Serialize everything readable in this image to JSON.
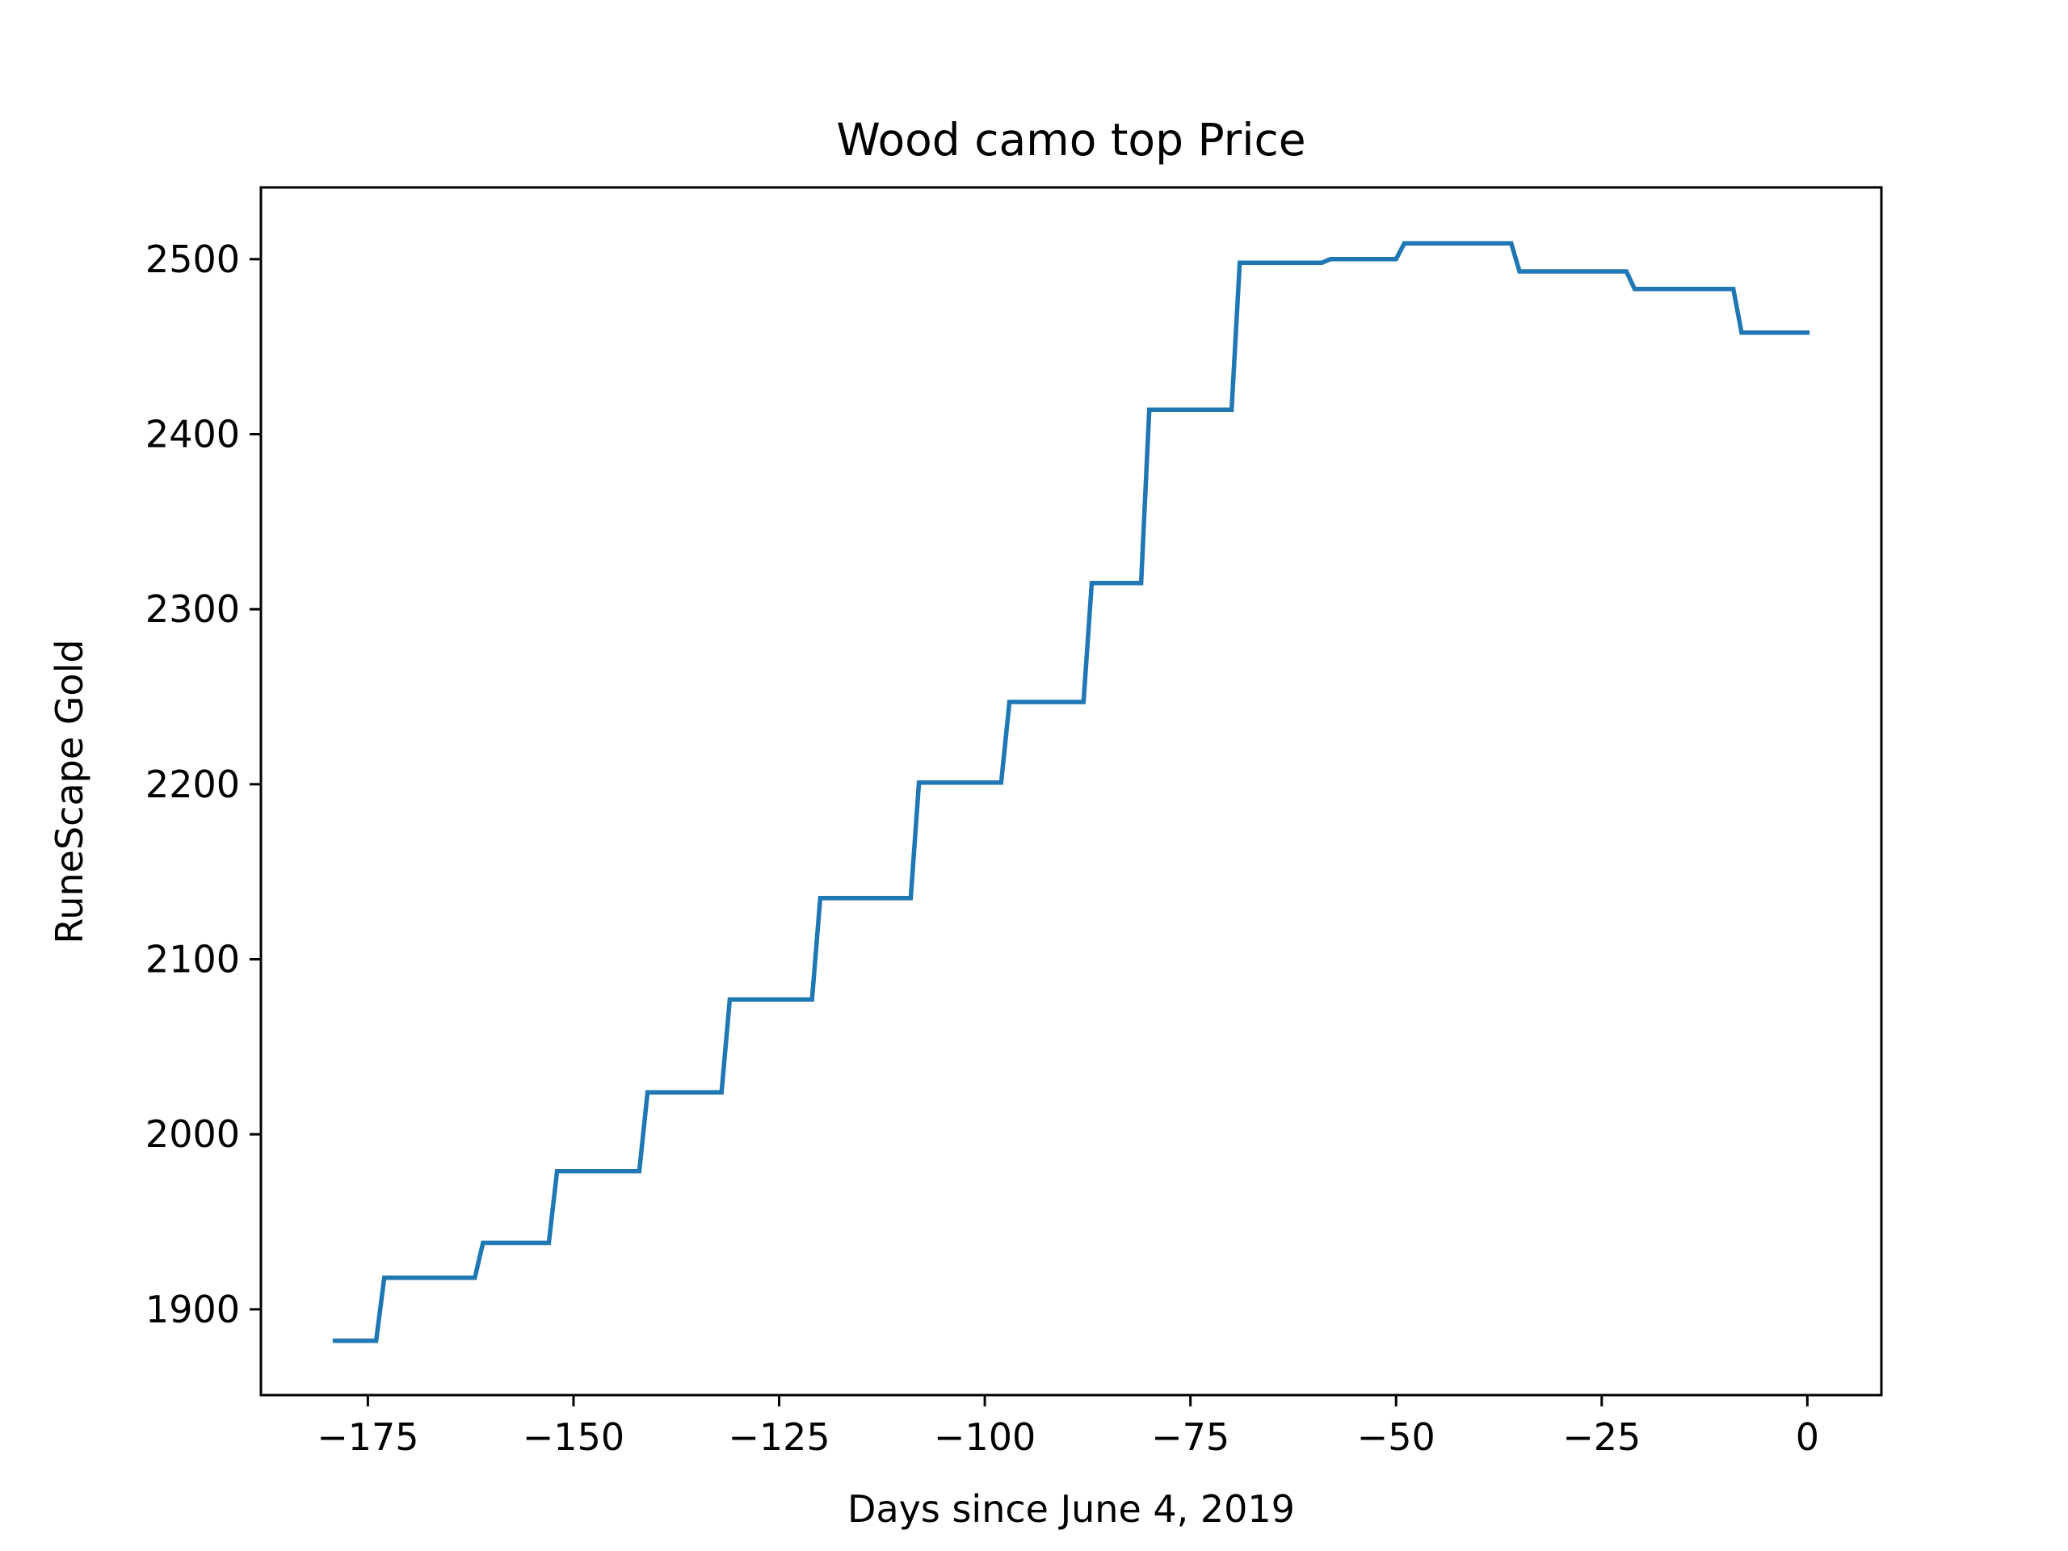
{
  "chart_data": {
    "type": "line",
    "title": "Wood camo top Price",
    "xlabel": "Days since June 4, 2019",
    "ylabel": "RuneScape Gold",
    "xlim": [
      -188,
      9
    ],
    "ylim": [
      1851,
      2541
    ],
    "xticks": [
      -175,
      -150,
      -125,
      -100,
      -75,
      -50,
      -25,
      0
    ],
    "xtick_labels": [
      "−175",
      "−150",
      "−125",
      "−100",
      "−75",
      "−50",
      "−25",
      "0"
    ],
    "yticks": [
      1900,
      2000,
      2100,
      2200,
      2300,
      2400,
      2500
    ],
    "ytick_labels": [
      "1900",
      "2000",
      "2100",
      "2200",
      "2300",
      "2400",
      "2500"
    ],
    "grid": false,
    "series": [
      {
        "color": "#1f77b4",
        "x": [
          -179,
          -174,
          -173,
          -162,
          -161,
          -153,
          -152,
          -142,
          -141,
          -132,
          -131,
          -121,
          -120,
          -109,
          -108,
          -98,
          -97,
          -88,
          -87,
          -81,
          -80,
          -70,
          -69,
          -59,
          -58,
          -50,
          -49,
          -36,
          -35,
          -22,
          -21,
          -9,
          -8,
          0
        ],
        "y": [
          1882,
          1882,
          1918,
          1918,
          1938,
          1938,
          1979,
          1979,
          2024,
          2024,
          2077,
          2077,
          2135,
          2135,
          2201,
          2201,
          2247,
          2247,
          2315,
          2315,
          2414,
          2414,
          2498,
          2498,
          2500,
          2500,
          2509,
          2509,
          2493,
          2493,
          2483,
          2483,
          2458,
          2458
        ]
      }
    ]
  }
}
